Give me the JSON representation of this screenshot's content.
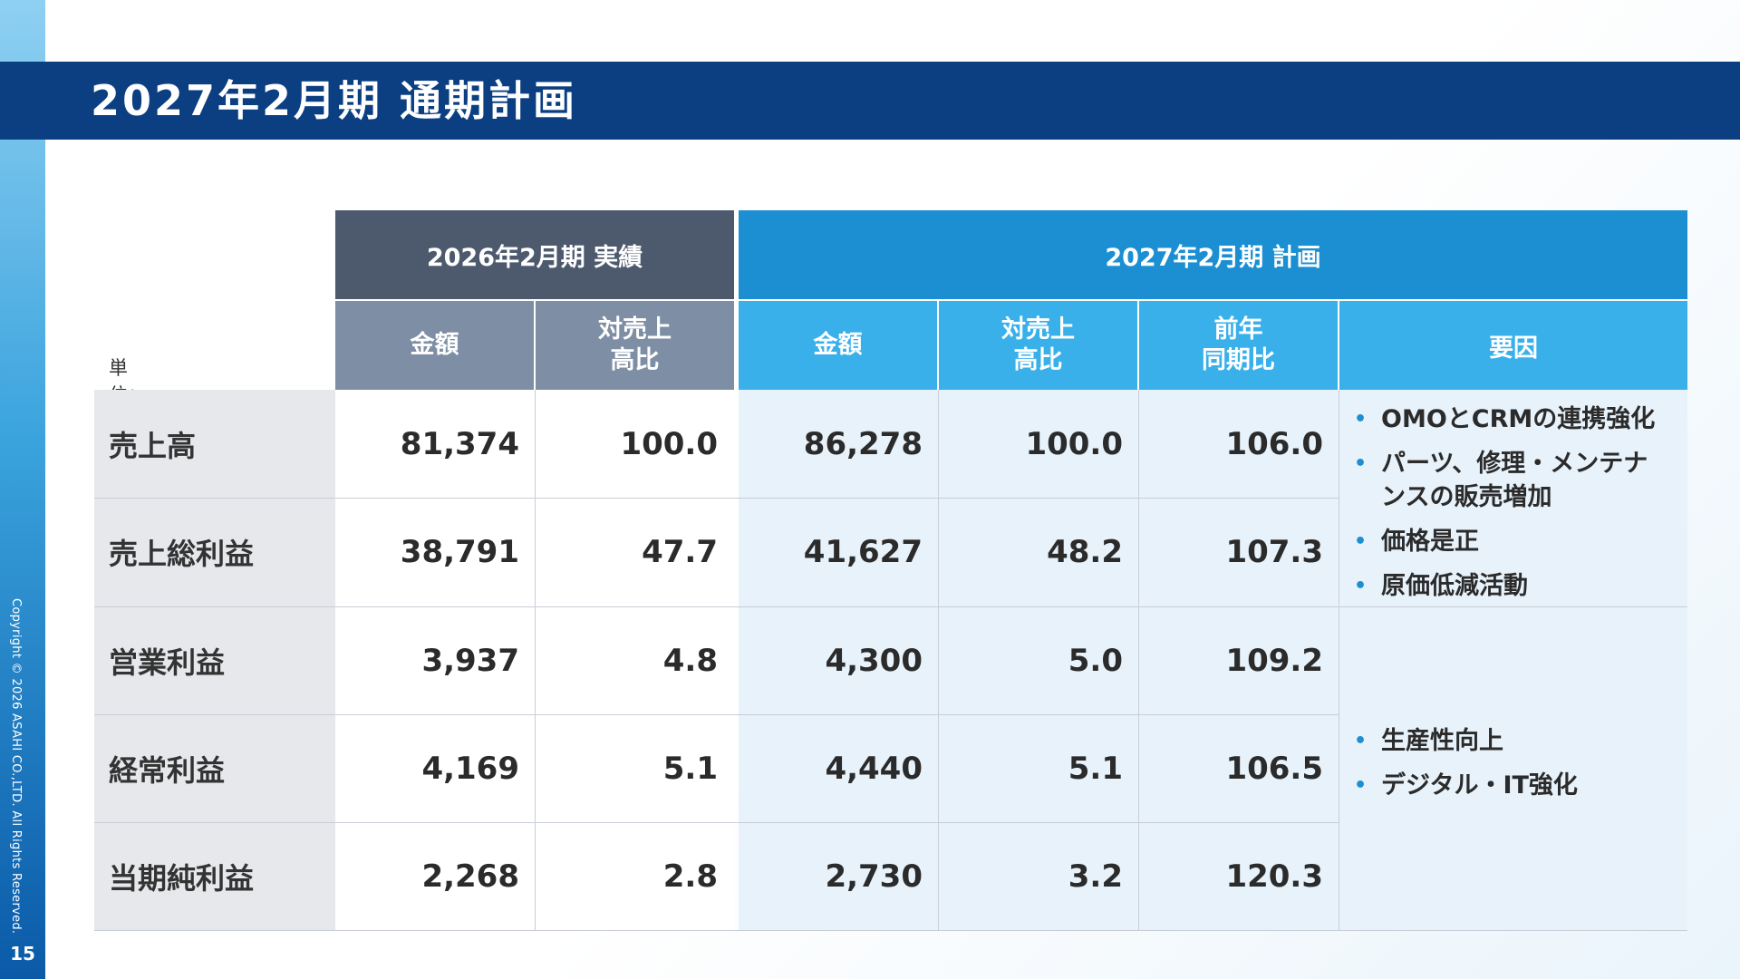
{
  "page": {
    "title": "2027年2月期 通期計画",
    "page_number": "15",
    "copyright": "Copyright © 2026 ASAHI CO.,LTD. All Rights Reserved."
  },
  "table": {
    "unit": "単位：百万円、%",
    "group_headers": [
      "2026年2月期 実績",
      "2027年2月期 計画"
    ],
    "col_headers": {
      "amount": "金額",
      "ratio_line1": "対売上",
      "ratio_line2": "高比",
      "yoy_line1": "前年",
      "yoy_line2": "同期比",
      "factors": "要因"
    },
    "rows": [
      {
        "label": "売上高",
        "a2026": "81,374",
        "r2026": "100.0",
        "a2027": "86,278",
        "r2027": "100.0",
        "yoy": "106.0"
      },
      {
        "label": "売上総利益",
        "a2026": "38,791",
        "r2026": "47.7",
        "a2027": "41,627",
        "r2027": "48.2",
        "yoy": "107.3"
      },
      {
        "label": "営業利益",
        "a2026": "3,937",
        "r2026": "4.8",
        "a2027": "4,300",
        "r2027": "5.0",
        "yoy": "109.2"
      },
      {
        "label": "経常利益",
        "a2026": "4,169",
        "r2026": "5.1",
        "a2027": "4,440",
        "r2027": "5.1",
        "yoy": "106.5"
      },
      {
        "label": "当期純利益",
        "a2026": "2,268",
        "r2026": "2.8",
        "a2027": "2,730",
        "r2027": "3.2",
        "yoy": "120.3"
      }
    ],
    "factors_top": [
      "OMOとCRMの連携強化",
      "パーツ、修理・メンテナンスの販売増加",
      "価格是正",
      "原価低減活動"
    ],
    "factors_bottom": [
      "生産性向上",
      "デジタル・IT強化"
    ],
    "bullet": "•"
  }
}
